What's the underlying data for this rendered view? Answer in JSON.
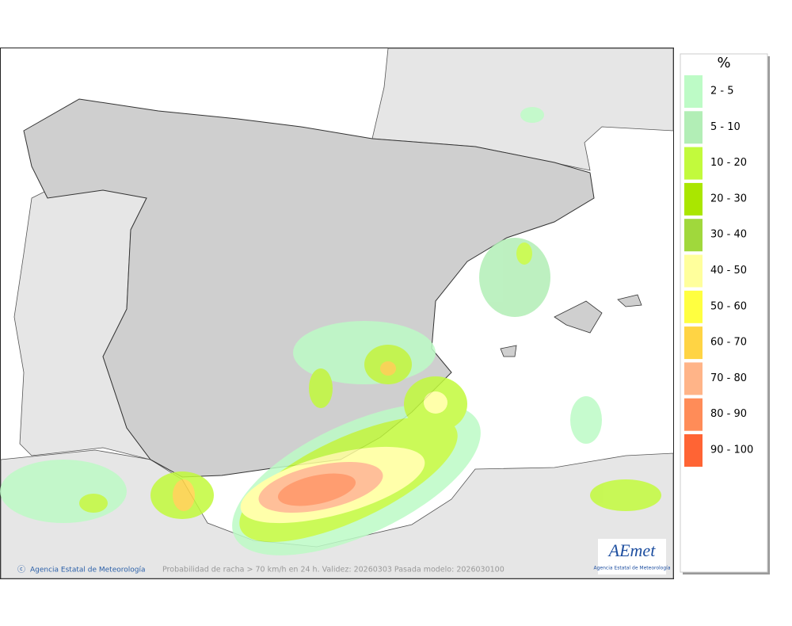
{
  "map": {
    "legend": {
      "title": "%",
      "items": [
        {
          "label": "2 - 5",
          "color": "#bdfbc6"
        },
        {
          "label": "5 - 10",
          "color": "#b2eeb6"
        },
        {
          "label": "10 - 20",
          "color": "#c2fa3c"
        },
        {
          "label": "20 - 30",
          "color": "#aae600"
        },
        {
          "label": "30 - 40",
          "color": "#a0d83c"
        },
        {
          "label": "40 - 50",
          "color": "#ffff9c"
        },
        {
          "label": "50 - 60",
          "color": "#ffff40"
        },
        {
          "label": "60 - 70",
          "color": "#ffd444"
        },
        {
          "label": "70 - 80",
          "color": "#ffb488"
        },
        {
          "label": "80 - 90",
          "color": "#ff8c58"
        },
        {
          "label": "90 - 100",
          "color": "#ff6434"
        }
      ]
    },
    "footer": {
      "credit": "Agencia Estatal de Meteorología",
      "caption": "Probabilidad de racha > 70 km/h en 24 h. Validez: 20260303 Pasada modelo: 2026030100"
    },
    "logo": {
      "name": "AEmet",
      "subtitle": "Agencia Estatal de Meteorología"
    }
  }
}
